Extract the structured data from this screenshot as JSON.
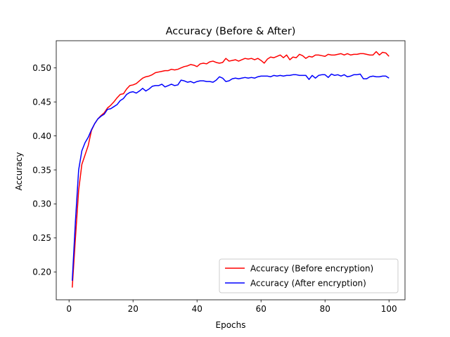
{
  "chart_data": {
    "type": "line",
    "title": "Accuracy (Before & After)",
    "xlabel": "Epochs",
    "ylabel": "Accuracy",
    "xlim": [
      -4,
      105
    ],
    "ylim": [
      0.159,
      0.54
    ],
    "xticks": [
      0,
      20,
      40,
      60,
      80,
      100
    ],
    "yticks": [
      0.2,
      0.25,
      0.3,
      0.35,
      0.4,
      0.45,
      0.5
    ],
    "xtick_labels": [
      "0",
      "20",
      "40",
      "60",
      "80",
      "100"
    ],
    "ytick_labels": [
      "0.20",
      "0.25",
      "0.30",
      "0.35",
      "0.40",
      "0.45",
      "0.50"
    ],
    "grid": false,
    "legend_position": "lower-right",
    "x": [
      1,
      2,
      3,
      4,
      5,
      6,
      7,
      8,
      9,
      10,
      11,
      12,
      13,
      14,
      15,
      16,
      17,
      18,
      19,
      20,
      21,
      22,
      23,
      24,
      25,
      26,
      27,
      28,
      29,
      30,
      31,
      32,
      33,
      34,
      35,
      36,
      37,
      38,
      39,
      40,
      41,
      42,
      43,
      44,
      45,
      46,
      47,
      48,
      49,
      50,
      51,
      52,
      53,
      54,
      55,
      56,
      57,
      58,
      59,
      60,
      61,
      62,
      63,
      64,
      65,
      66,
      67,
      68,
      69,
      70,
      71,
      72,
      73,
      74,
      75,
      76,
      77,
      78,
      79,
      80,
      81,
      82,
      83,
      84,
      85,
      86,
      87,
      88,
      89,
      90,
      91,
      92,
      93,
      94,
      95,
      96,
      97,
      98,
      99,
      100
    ],
    "series": [
      {
        "name": "Accuracy (Before encryption)",
        "color": "#ff0000",
        "values": [
          0.177,
          0.25,
          0.32,
          0.358,
          0.372,
          0.386,
          0.408,
          0.418,
          0.425,
          0.43,
          0.434,
          0.441,
          0.445,
          0.45,
          0.456,
          0.461,
          0.462,
          0.469,
          0.474,
          0.475,
          0.477,
          0.481,
          0.485,
          0.487,
          0.488,
          0.49,
          0.493,
          0.494,
          0.495,
          0.496,
          0.496,
          0.498,
          0.497,
          0.498,
          0.5,
          0.502,
          0.503,
          0.505,
          0.504,
          0.502,
          0.506,
          0.507,
          0.506,
          0.509,
          0.51,
          0.508,
          0.507,
          0.508,
          0.514,
          0.51,
          0.511,
          0.512,
          0.51,
          0.512,
          0.514,
          0.513,
          0.514,
          0.512,
          0.514,
          0.511,
          0.507,
          0.513,
          0.516,
          0.515,
          0.517,
          0.519,
          0.515,
          0.519,
          0.512,
          0.516,
          0.515,
          0.52,
          0.518,
          0.514,
          0.517,
          0.516,
          0.519,
          0.519,
          0.518,
          0.517,
          0.52,
          0.519,
          0.519,
          0.52,
          0.521,
          0.519,
          0.521,
          0.519,
          0.52,
          0.52,
          0.521,
          0.521,
          0.52,
          0.519,
          0.519,
          0.524,
          0.519,
          0.523,
          0.522,
          0.517
        ]
      },
      {
        "name": "Accuracy (After encryption)",
        "color": "#0000ff",
        "values": [
          0.187,
          0.275,
          0.35,
          0.378,
          0.39,
          0.398,
          0.409,
          0.418,
          0.425,
          0.429,
          0.432,
          0.439,
          0.44,
          0.443,
          0.446,
          0.452,
          0.455,
          0.461,
          0.464,
          0.465,
          0.463,
          0.466,
          0.47,
          0.466,
          0.469,
          0.473,
          0.474,
          0.474,
          0.476,
          0.472,
          0.474,
          0.476,
          0.474,
          0.475,
          0.482,
          0.481,
          0.479,
          0.48,
          0.478,
          0.48,
          0.481,
          0.481,
          0.48,
          0.48,
          0.479,
          0.482,
          0.487,
          0.485,
          0.48,
          0.481,
          0.484,
          0.485,
          0.484,
          0.485,
          0.486,
          0.485,
          0.486,
          0.485,
          0.487,
          0.488,
          0.488,
          0.488,
          0.487,
          0.489,
          0.488,
          0.489,
          0.488,
          0.489,
          0.489,
          0.49,
          0.49,
          0.489,
          0.489,
          0.489,
          0.483,
          0.489,
          0.485,
          0.489,
          0.49,
          0.49,
          0.486,
          0.491,
          0.489,
          0.49,
          0.488,
          0.49,
          0.487,
          0.488,
          0.49,
          0.49,
          0.491,
          0.484,
          0.484,
          0.487,
          0.488,
          0.487,
          0.487,
          0.488,
          0.488,
          0.485
        ]
      }
    ]
  }
}
